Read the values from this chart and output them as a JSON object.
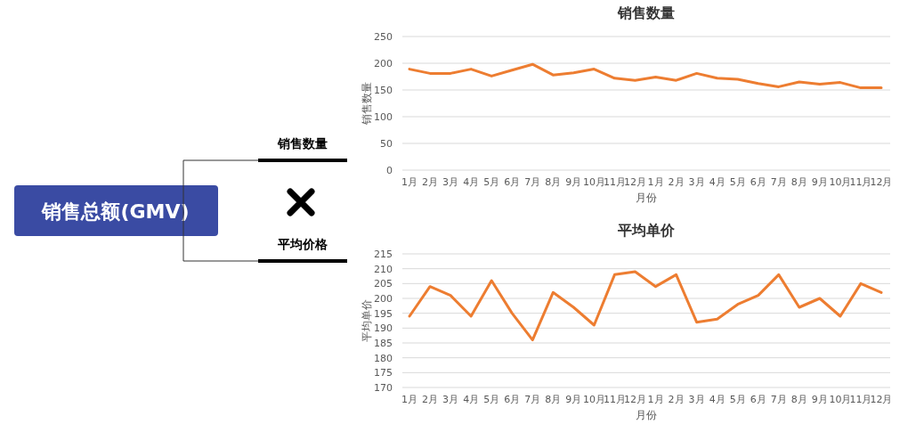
{
  "chart_data": [
    {
      "type": "other",
      "title": "销售总额(GMV)",
      "annotations": [
        "销售数量",
        "平均价格"
      ]
    },
    {
      "type": "line",
      "title": "销售数量",
      "xlabel": "月份",
      "ylabel": "销售数量",
      "categories": [
        "1月",
        "2月",
        "3月",
        "4月",
        "5月",
        "6月",
        "7月",
        "8月",
        "9月",
        "10月",
        "11月",
        "12月",
        "1月",
        "2月",
        "3月",
        "4月",
        "5月",
        "6月",
        "7月",
        "8月",
        "9月",
        "10月",
        "11月",
        "12月"
      ],
      "series": [
        {
          "color": "#ed7d31",
          "values": [
            189,
            181,
            181,
            189,
            176,
            187,
            198,
            178,
            182,
            189,
            172,
            168,
            174,
            168,
            181,
            172,
            170,
            162,
            156,
            165,
            161,
            164,
            154,
            154
          ]
        }
      ],
      "ylim": [
        0,
        250
      ],
      "yticks": [
        0,
        50,
        100,
        150,
        200,
        250
      ],
      "grid": "y"
    },
    {
      "type": "line",
      "title": "平均单价",
      "xlabel": "月份",
      "ylabel": "平均单价",
      "categories": [
        "1月",
        "2月",
        "3月",
        "4月",
        "5月",
        "6月",
        "7月",
        "8月",
        "9月",
        "10月",
        "11月",
        "12月",
        "1月",
        "2月",
        "3月",
        "4月",
        "5月",
        "6月",
        "7月",
        "8月",
        "9月",
        "10月",
        "11月",
        "12月"
      ],
      "series": [
        {
          "color": "#ed7d31",
          "values": [
            194,
            204,
            201,
            194,
            206,
            195,
            186,
            202,
            197,
            191,
            208,
            209,
            204,
            208,
            192,
            193,
            198,
            201,
            208,
            197,
            200,
            194,
            205,
            202
          ]
        }
      ],
      "ylim": [
        170,
        215
      ],
      "yticks": [
        170,
        175,
        180,
        185,
        190,
        195,
        200,
        205,
        210,
        215
      ],
      "grid": "y"
    }
  ]
}
